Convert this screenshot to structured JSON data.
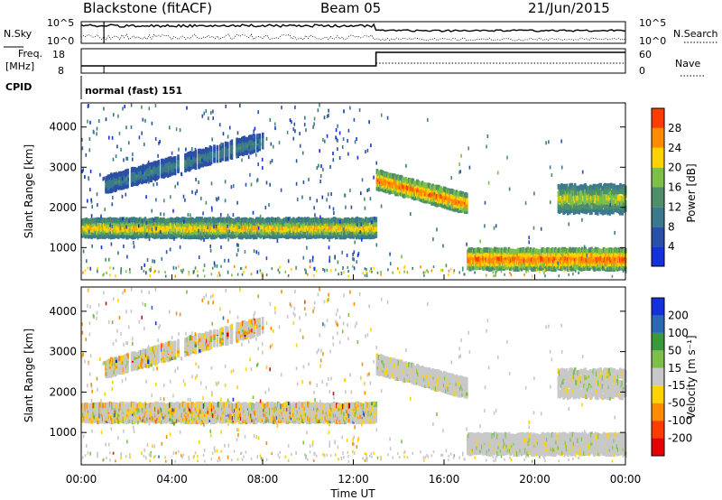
{
  "header": {
    "station": "Blackstone (fitACF)",
    "beam": "Beam 05",
    "date": "21/Jun/2015"
  },
  "noise_panel": {
    "left_label": "N.Sky",
    "right_label": "N.Search",
    "left_ticks": [
      "10^5",
      "10^0"
    ],
    "right_ticks": [
      "10^5",
      "10^0"
    ]
  },
  "freq_panel": {
    "left_label_top": "Freq.",
    "left_label_bottom": "[MHz]",
    "right_label": "Nave",
    "left_ticks": [
      "18",
      "8"
    ],
    "right_ticks": [
      "60",
      "0"
    ]
  },
  "cpid": {
    "label": "CPID",
    "value": "normal (fast) 151"
  },
  "x_axis": {
    "label": "Time UT",
    "tick_labels": [
      "00:00",
      "04:00",
      "08:00",
      "12:00",
      "16:00",
      "20:00",
      "00:00"
    ]
  },
  "colors": {
    "power_scale": [
      "#1432dc",
      "#2a4fa6",
      "#3a7a8c",
      "#4e8f6a",
      "#7cc04a",
      "#ffd200",
      "#ff8c00",
      "#ff3c00",
      "#e60000"
    ],
    "velocity_scale": [
      "#e60000",
      "#ff3c00",
      "#ff8c00",
      "#ffd200",
      "#c8c8c8",
      "#7cc04a",
      "#3a9a3a",
      "#2a6ab4",
      "#1432dc"
    ]
  },
  "chart_data": [
    {
      "type": "heatmap",
      "panel": "power",
      "ylabel": "Slant Range [km]",
      "xlabel": "Time UT",
      "xlim": [
        "00:00",
        "24:00"
      ],
      "ylim": [
        200,
        4600
      ],
      "yticks": [
        1000,
        2000,
        3000,
        4000
      ],
      "colorbar": {
        "label": "Power [dB]",
        "ticks": [
          4,
          8,
          12,
          16,
          20,
          24,
          28
        ],
        "range": [
          0,
          32
        ]
      },
      "features": [
        {
          "desc": "main echo band",
          "t_start": 0.0,
          "t_end": 13.0,
          "range_km": [
            1200,
            1650
          ],
          "power_dB": [
            8,
            24
          ]
        },
        {
          "desc": "upper weak band",
          "t_start": 1.0,
          "t_end": 8.0,
          "range_km": [
            2300,
            3800
          ],
          "power_dB": [
            4,
            12
          ]
        },
        {
          "desc": "descending band",
          "t_start": 13.0,
          "t_end": 17.0,
          "range_km": [
            1800,
            2700
          ],
          "power_dB": [
            12,
            28
          ]
        },
        {
          "desc": "near-range band",
          "t_start": 17.0,
          "t_end": 24.0,
          "range_km": [
            400,
            900
          ],
          "power_dB": [
            12,
            28
          ]
        },
        {
          "desc": "late band",
          "t_start": 21.0,
          "t_end": 24.0,
          "range_km": [
            1800,
            2500
          ],
          "power_dB": [
            8,
            20
          ]
        }
      ]
    },
    {
      "type": "heatmap",
      "panel": "velocity",
      "ylabel": "Slant Range [km]",
      "xlabel": "Time UT",
      "xlim": [
        "00:00",
        "24:00"
      ],
      "ylim": [
        200,
        4600
      ],
      "yticks": [
        1000,
        2000,
        3000,
        4000
      ],
      "colorbar": {
        "label": "Velocity [m s⁻¹]",
        "ticks": [
          -200,
          -100,
          -50,
          -15,
          15,
          50,
          100,
          200
        ],
        "tick_labels": [
          "-200",
          "-100",
          "-50",
          "-15",
          "15",
          "50",
          "100",
          "200"
        ]
      }
    }
  ]
}
